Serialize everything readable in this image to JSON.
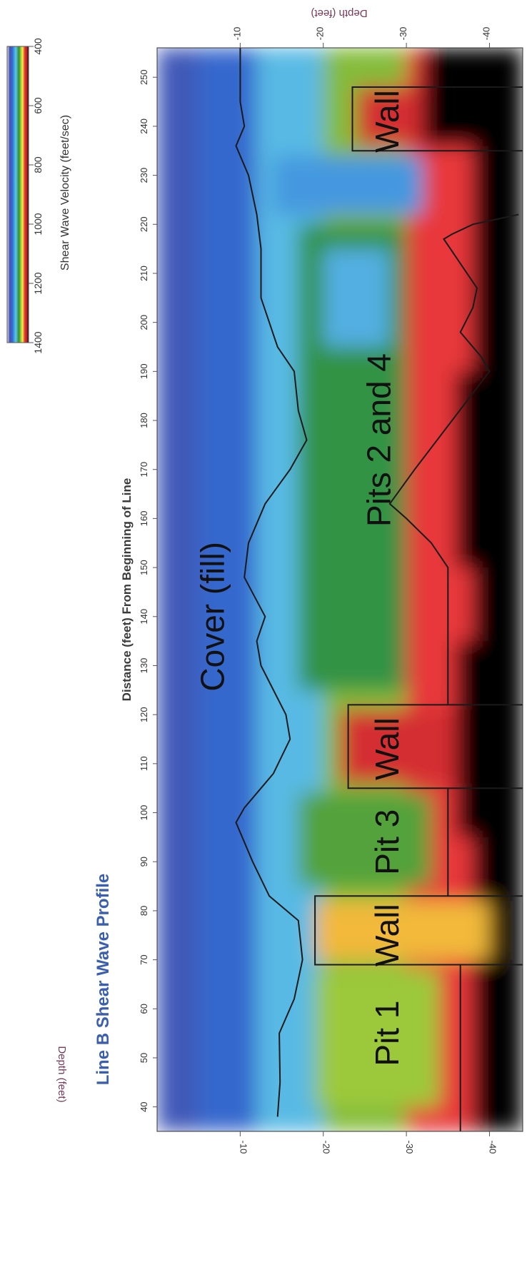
{
  "chart_data": {
    "type": "heatmap",
    "title": "Line B Shear Wave Profile",
    "xlabel": "Distance (feet) From Beginning of Line",
    "ylabel": "Depth (feet)",
    "xlim": [
      35,
      256
    ],
    "ylim": [
      0,
      -44
    ],
    "x_ticks": [
      "40",
      "50",
      "60",
      "70",
      "80",
      "90",
      "100",
      "110",
      "120",
      "130",
      "140",
      "150",
      "160",
      "170",
      "180",
      "190",
      "200",
      "210",
      "220",
      "230",
      "240",
      "250"
    ],
    "y_ticks": [
      "-10",
      "-20",
      "-30",
      "-40"
    ],
    "colorbar": {
      "label": "Shear Wave Velocity (feet/sec)",
      "range": [
        400,
        1400
      ],
      "ticks": [
        "400",
        "600",
        "800",
        "1000",
        "1200",
        "1400"
      ],
      "stops": [
        {
          "value": 400,
          "color": "#f2f2fa"
        },
        {
          "value": 520,
          "color": "#4a4fa8"
        },
        {
          "value": 650,
          "color": "#2d6fd8"
        },
        {
          "value": 800,
          "color": "#5fc6e6"
        },
        {
          "value": 950,
          "color": "#2f8f3a"
        },
        {
          "value": 1050,
          "color": "#a8cf3a"
        },
        {
          "value": 1120,
          "color": "#f6f03a"
        },
        {
          "value": 1220,
          "color": "#e8373a"
        },
        {
          "value": 1330,
          "color": "#b01e22"
        },
        {
          "value": 1400,
          "color": "#000000"
        }
      ]
    },
    "annotations": [
      {
        "text": "Cover (fill)",
        "x": 140,
        "y": -7
      },
      {
        "text": "Pit 1",
        "x": 55,
        "y": -28
      },
      {
        "text": "Wall",
        "x": 75,
        "y": -28
      },
      {
        "text": "Pit 3",
        "x": 94,
        "y": -28
      },
      {
        "text": "Wall",
        "x": 113,
        "y": -28
      },
      {
        "text": "Pits 2 and 4",
        "x": 176,
        "y": -27
      },
      {
        "text": "Wall",
        "x": 241,
        "y": -28
      }
    ],
    "cover_boundary": {
      "x": [
        38,
        45,
        55,
        62,
        70,
        78,
        83,
        90,
        98,
        101,
        108,
        115,
        120,
        130,
        135,
        140,
        148,
        155,
        163,
        170,
        176,
        182,
        190,
        195,
        205,
        215,
        222,
        230,
        236,
        240,
        245,
        256
      ],
      "y": [
        -14.5,
        -14.8,
        -14.7,
        -16.5,
        -17.5,
        -17.0,
        -13.5,
        -11.5,
        -9.5,
        -10.5,
        -14.0,
        -16.0,
        -15.5,
        -12.5,
        -12.0,
        -13.0,
        -10.5,
        -11.0,
        -13.0,
        -16.0,
        -18.0,
        -17.0,
        -16.5,
        -14.5,
        -12.5,
        -12.5,
        -12.0,
        -11.0,
        -9.5,
        -10.5,
        -10.0,
        -10.0
      ]
    },
    "structures": [
      {
        "name": "Pit 1",
        "x0": 35,
        "x1": 69,
        "y_top": null,
        "y_bottom": -36.5
      },
      {
        "name": "Wall",
        "x0": 69,
        "x1": 83,
        "y_top": -19.0,
        "y_bottom": null
      },
      {
        "name": "Pit 3",
        "x0": 83,
        "x1": 105,
        "y_top": null,
        "y_bottom": -35.0
      },
      {
        "name": "Wall",
        "x0": 105,
        "x1": 122,
        "y_top": -23.0,
        "y_bottom": null
      },
      {
        "name": "Pits 2 and 4",
        "x0": 122,
        "x1": 235,
        "y_top": null,
        "y_bottom": "irregular"
      },
      {
        "name": "Wall",
        "x0": 235,
        "x1": 248,
        "y_top": -23.5,
        "y_bottom": null
      }
    ],
    "pits_bottom_profile": {
      "x": [
        122,
        130,
        140,
        150,
        155,
        160,
        163,
        170,
        180,
        190,
        193,
        198,
        203,
        207,
        212,
        217,
        218,
        220,
        222
      ],
      "y": [
        -35.0,
        -35.0,
        -35.0,
        -35.0,
        -33.0,
        -30.0,
        -28.0,
        -31.0,
        -35.5,
        -40.0,
        -39.0,
        -36.5,
        -38.0,
        -38.5,
        -36.5,
        -34.5,
        -35.5,
        -38.0,
        -43.5
      ]
    }
  }
}
